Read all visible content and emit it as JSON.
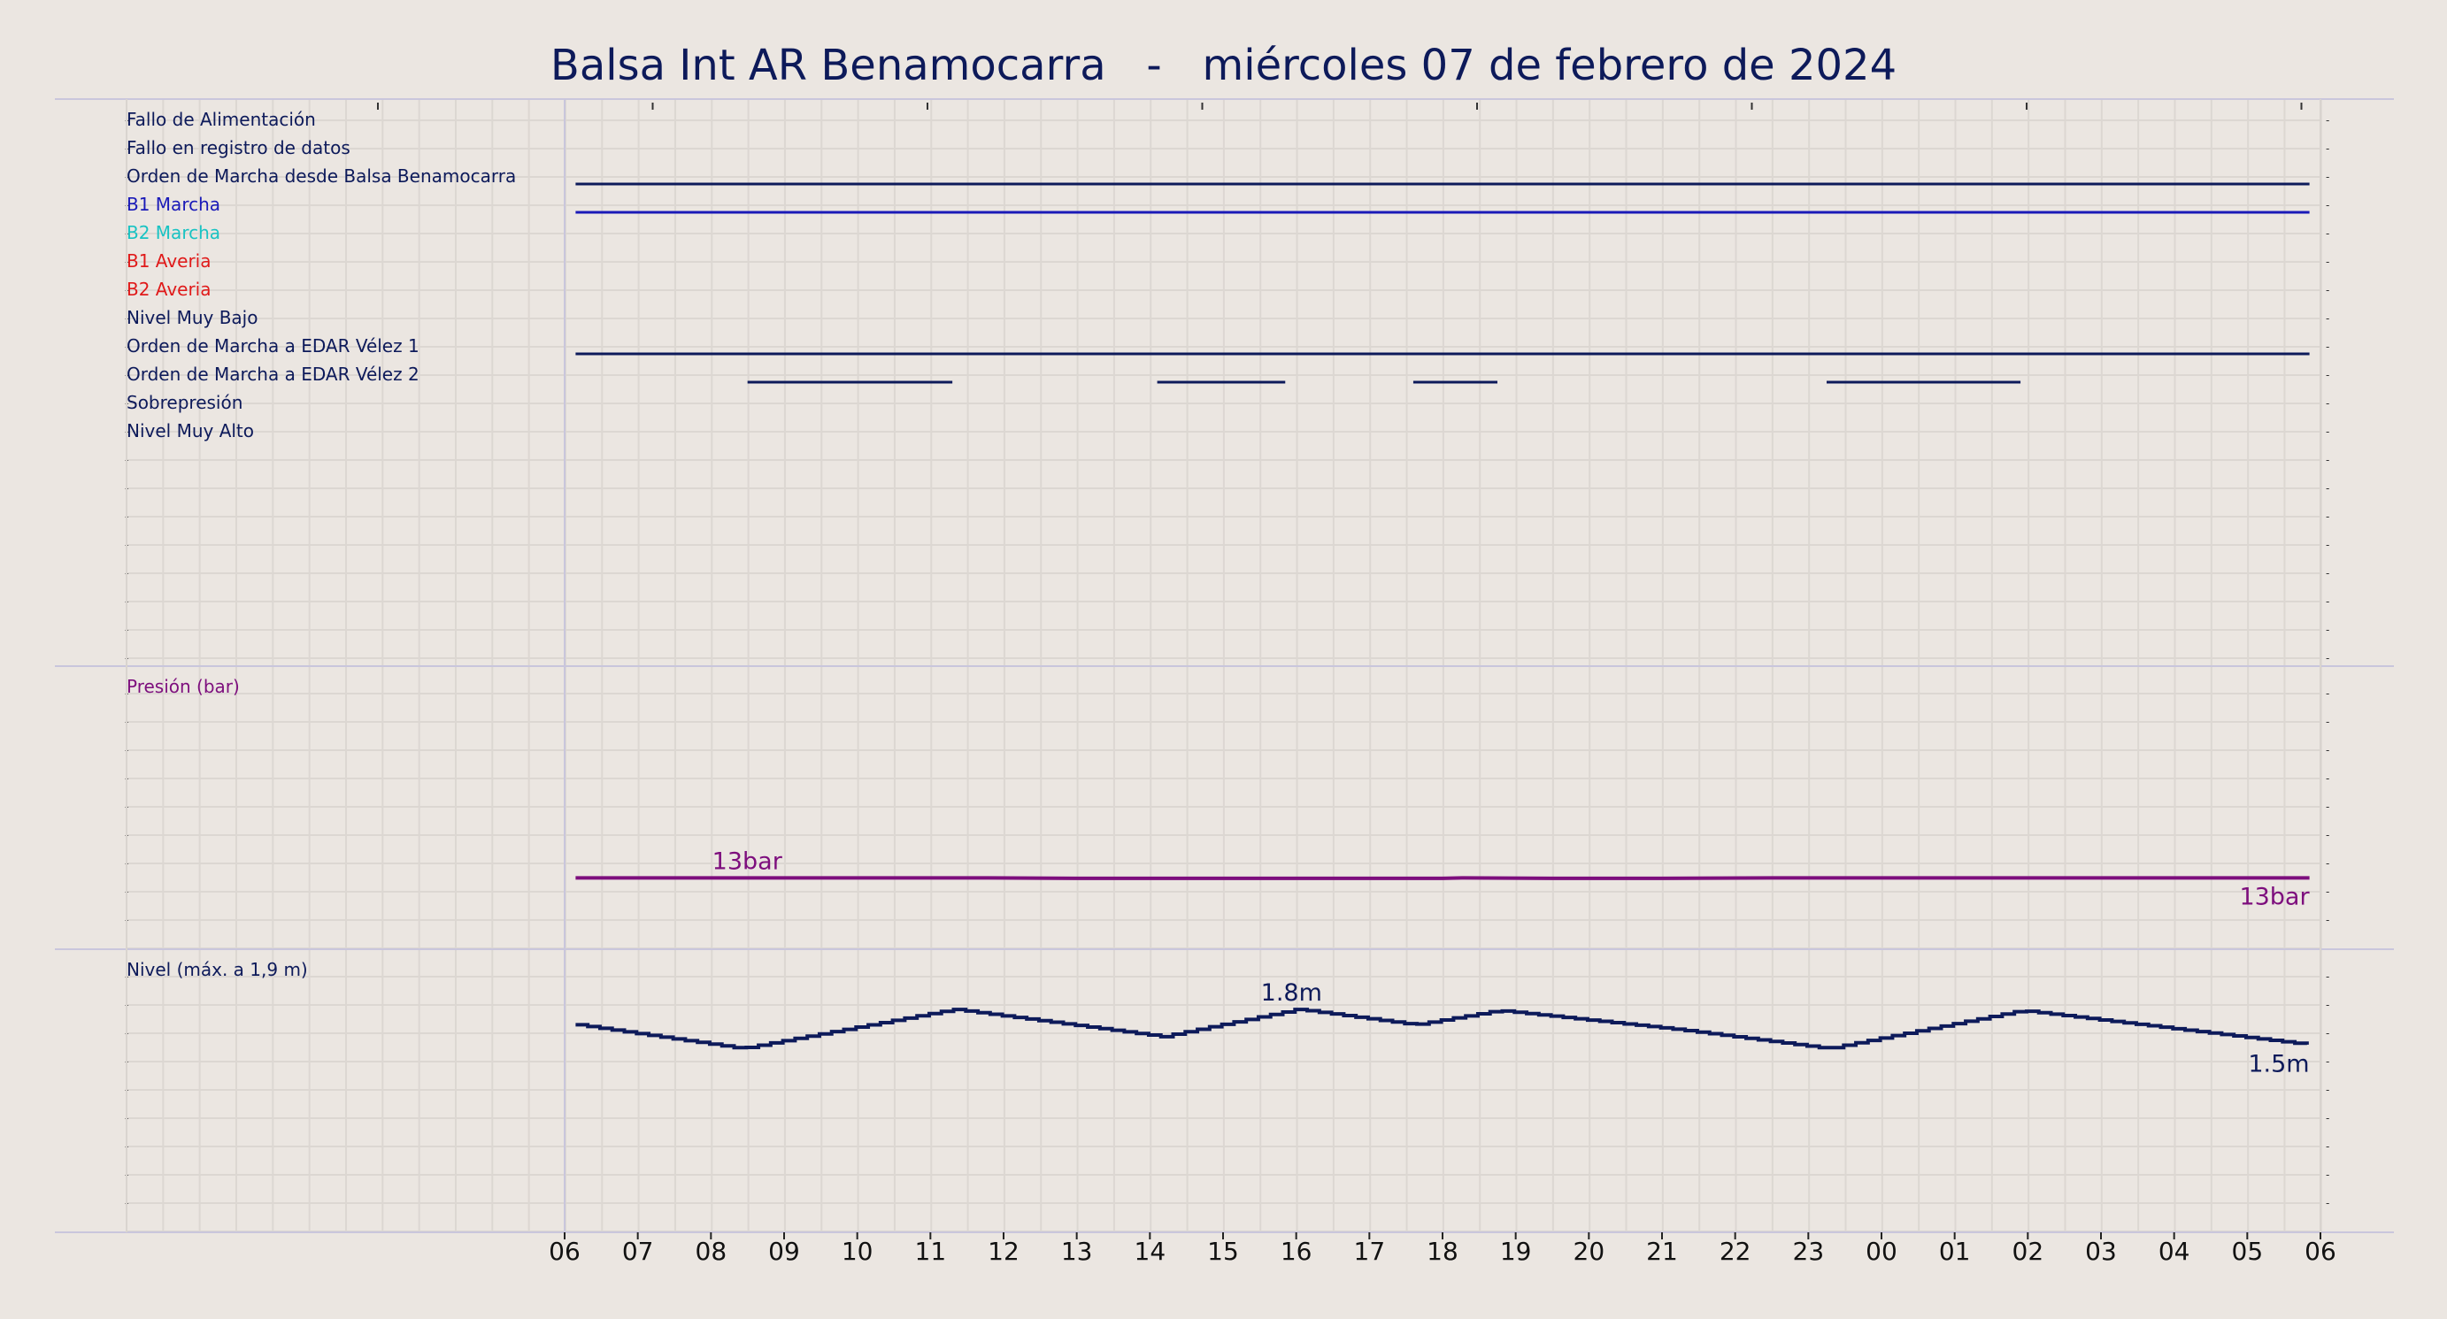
{
  "title": "Balsa Int AR Benamocarra   -   miércoles 07 de febrero de 2024",
  "chart_data": {
    "type": "line",
    "x_tick_labels": [
      "06",
      "07",
      "08",
      "09",
      "10",
      "11",
      "12",
      "13",
      "14",
      "15",
      "16",
      "17",
      "18",
      "19",
      "20",
      "21",
      "22",
      "23",
      "00",
      "01",
      "02",
      "03",
      "04",
      "05",
      "06"
    ],
    "x_range_hours": [
      0,
      24
    ],
    "colors": {
      "background": "#ebe6e1",
      "grid": "#dcd7d2",
      "navy": "#0d1a5a",
      "blue": "#1a1ab8",
      "cyan": "#19c3c3",
      "red": "#e01a1a",
      "purple": "#7d0e7d"
    },
    "digital_panel": {
      "signals": [
        {
          "label": "Fallo de Alimentación",
          "color": "#0d1a5a",
          "segments": []
        },
        {
          "label": "Fallo en registro de datos",
          "color": "#0d1a5a",
          "segments": []
        },
        {
          "label": "Orden de Marcha desde Balsa Benamocarra",
          "color": "#0d1a5a",
          "segments": [
            [
              0.15,
              23.85
            ]
          ]
        },
        {
          "label": "B1 Marcha",
          "color": "#1a1ab8",
          "segments": [
            [
              0.15,
              23.85
            ]
          ]
        },
        {
          "label": "B2 Marcha",
          "color": "#19c3c3",
          "segments": []
        },
        {
          "label": "B1 Averia",
          "color": "#e01a1a",
          "segments": []
        },
        {
          "label": "B2 Averia",
          "color": "#e01a1a",
          "segments": []
        },
        {
          "label": "Nivel Muy Bajo",
          "color": "#0d1a5a",
          "segments": []
        },
        {
          "label": "Orden de Marcha a EDAR Vélez 1",
          "color": "#0d1a5a",
          "segments": [
            [
              0.15,
              23.85
            ]
          ]
        },
        {
          "label": "Orden de Marcha a EDAR Vélez 2",
          "color": "#0d1a5a",
          "segments": [
            [
              2.5,
              5.3
            ],
            [
              8.1,
              9.85
            ],
            [
              11.6,
              12.75
            ],
            [
              17.25,
              19.9
            ]
          ]
        },
        {
          "label": "Sobrepresión",
          "color": "#0d1a5a",
          "segments": []
        },
        {
          "label": "Nivel Muy Alto",
          "color": "#0d1a5a",
          "segments": []
        }
      ]
    },
    "pressure_panel": {
      "label": "Presión (bar)",
      "unit": "bar",
      "color": "#7d0e7d",
      "ylim": [
        0,
        50
      ],
      "x": [
        0.15,
        2.0,
        4.0,
        5.8,
        7.0,
        9.0,
        12.0,
        12.3,
        13.5,
        15.0,
        16.5,
        18.0,
        20.0,
        22.0,
        23.85
      ],
      "values": [
        13,
        13,
        13,
        13,
        12.9,
        12.9,
        12.9,
        13,
        12.9,
        12.9,
        13,
        13,
        13,
        13,
        13
      ],
      "annotations": [
        {
          "text": "13bar",
          "x": 2.5
        },
        {
          "text": "13bar",
          "x": 23.85
        }
      ]
    },
    "level_panel": {
      "label": "Nivel (máx. a 1,9 m)",
      "unit": "m",
      "color": "#0d1a5a",
      "ylim": [
        0,
        2.0
      ],
      "x": [
        0.15,
        2.4,
        5.3,
        8.15,
        10.0,
        11.6,
        12.75,
        15.2,
        17.25,
        19.9,
        23.85
      ],
      "values": [
        1.67,
        1.47,
        1.8,
        1.57,
        1.8,
        1.67,
        1.79,
        1.63,
        1.47,
        1.79,
        1.5
      ],
      "annotations": [
        {
          "text": "1.8m",
          "x": 10.0
        },
        {
          "text": "1.5m",
          "x": 23.85
        }
      ]
    }
  }
}
